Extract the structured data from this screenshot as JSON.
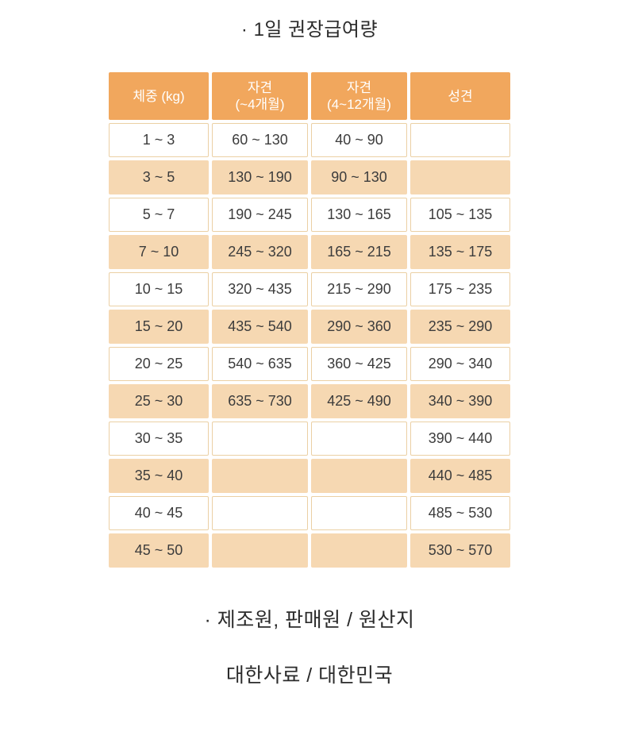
{
  "title": "· 1일 권장급여량",
  "colors": {
    "header_bg": "#F1A75D",
    "row_peach_bg": "#F6D8B2",
    "cell_border": "#EBD0A4",
    "header_text": "#FFFFFF",
    "body_text": "#3C3C3C"
  },
  "table": {
    "columns": [
      {
        "line1": "체중 (kg)",
        "line2": ""
      },
      {
        "line1": "자견",
        "line2": "(~4개월)"
      },
      {
        "line1": "자견",
        "line2": "(4~12개월)"
      },
      {
        "line1": "성견",
        "line2": ""
      }
    ],
    "rows": [
      {
        "shade": "white",
        "cells": [
          "1 ~ 3",
          "60 ~ 130",
          "40 ~ 90",
          ""
        ]
      },
      {
        "shade": "peach",
        "cells": [
          "3 ~ 5",
          "130 ~ 190",
          "90 ~ 130",
          ""
        ]
      },
      {
        "shade": "white",
        "cells": [
          "5 ~ 7",
          "190 ~ 245",
          "130 ~ 165",
          "105 ~ 135"
        ]
      },
      {
        "shade": "peach",
        "cells": [
          "7 ~ 10",
          "245 ~ 320",
          "165 ~ 215",
          "135 ~ 175"
        ]
      },
      {
        "shade": "white",
        "cells": [
          "10 ~ 15",
          "320 ~ 435",
          "215 ~ 290",
          "175 ~ 235"
        ]
      },
      {
        "shade": "peach",
        "cells": [
          "15 ~ 20",
          "435 ~ 540",
          "290 ~ 360",
          "235 ~ 290"
        ]
      },
      {
        "shade": "white",
        "cells": [
          "20 ~ 25",
          "540 ~ 635",
          "360 ~ 425",
          "290 ~ 340"
        ]
      },
      {
        "shade": "peach",
        "cells": [
          "25 ~ 30",
          "635 ~ 730",
          "425 ~ 490",
          "340 ~ 390"
        ]
      },
      {
        "shade": "white",
        "cells": [
          "30 ~ 35",
          "",
          "",
          "390 ~ 440"
        ]
      },
      {
        "shade": "peach",
        "cells": [
          "35 ~ 40",
          "",
          "",
          "440 ~ 485"
        ]
      },
      {
        "shade": "white",
        "cells": [
          "40 ~ 45",
          "",
          "",
          "485 ~ 530"
        ]
      },
      {
        "shade": "peach",
        "cells": [
          "45 ~ 50",
          "",
          "",
          "530 ~ 570"
        ]
      }
    ]
  },
  "footer": {
    "line1": "· 제조원, 판매원 / 원산지",
    "line2": "대한사료 / 대한민국"
  }
}
